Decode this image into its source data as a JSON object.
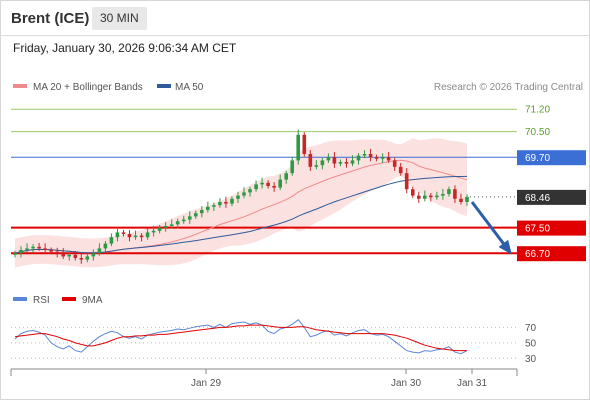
{
  "header": {
    "title": "Brent (ICE)",
    "timeframe": "30 MIN",
    "timestamp": "Friday, January 30, 2026 9:06:34 AM CET"
  },
  "legend": {
    "ma20_bb": "MA 20 + Bollinger Bands",
    "ma50": "MA 50",
    "rsi": "RSI",
    "rsi_ma": "9MA",
    "credit": "Research © 2026 Trading Central"
  },
  "colors": {
    "ma20": "#f08a8a",
    "bb_fill": "#fbdcdc",
    "ma50": "#2f5b9a",
    "bull": "#2e9a44",
    "bear": "#c62828",
    "resistance": "#9ccc65",
    "pivot": "#3b6fd6",
    "support": "#e00000",
    "current": "#333333",
    "rsi": "#5b86d6",
    "rsi_ma": "#e00000",
    "arrow": "#2a5ea8"
  },
  "chart_data": [
    {
      "type": "candlestick",
      "title": "Brent (ICE)",
      "timeframe": "30 MIN",
      "x_tick_labels": [
        "Jan 29",
        "Jan 30",
        "Jan 31"
      ],
      "ylim": [
        65.8,
        71.55
      ],
      "levels": [
        {
          "value": 71.2,
          "label": "71.20",
          "kind": "resistance"
        },
        {
          "value": 70.5,
          "label": "70.50",
          "kind": "resistance"
        },
        {
          "value": 69.7,
          "label": "69.70",
          "kind": "pivot"
        },
        {
          "value": 68.46,
          "label": "68.46",
          "kind": "current"
        },
        {
          "value": 67.5,
          "label": "67.50",
          "kind": "support"
        },
        {
          "value": 66.7,
          "label": "66.70",
          "kind": "support"
        }
      ],
      "projection": {
        "from": 68.3,
        "to": 66.7,
        "direction": "down"
      },
      "series": [
        {
          "name": "MA 20 + Bollinger Bands",
          "type": "line"
        },
        {
          "name": "MA 50",
          "type": "line"
        }
      ],
      "closes": [
        66.7,
        66.8,
        66.85,
        66.9,
        66.85,
        66.8,
        66.75,
        66.7,
        66.6,
        66.65,
        66.55,
        66.5,
        66.6,
        66.7,
        66.85,
        67.0,
        67.2,
        67.35,
        67.3,
        67.2,
        67.25,
        67.2,
        67.35,
        67.4,
        67.5,
        67.55,
        67.6,
        67.7,
        67.75,
        67.85,
        67.95,
        68.05,
        68.15,
        68.2,
        68.3,
        68.25,
        68.4,
        68.5,
        68.6,
        68.7,
        68.85,
        68.9,
        68.8,
        68.75,
        69.0,
        69.2,
        69.6,
        70.4,
        69.8,
        69.4,
        69.45,
        69.6,
        69.7,
        69.5,
        69.55,
        69.5,
        69.6,
        69.75,
        69.8,
        69.7,
        69.65,
        69.7,
        69.6,
        69.4,
        69.2,
        68.7,
        68.5,
        68.4,
        68.5,
        68.45,
        68.5,
        68.55,
        68.7,
        68.4,
        68.3,
        68.46
      ],
      "y_axis_side": "right"
    },
    {
      "type": "line",
      "title": "RSI",
      "series_names": [
        "RSI",
        "9MA"
      ],
      "y_ticks": [
        70,
        50,
        30
      ],
      "ylim": [
        20,
        90
      ],
      "rsi": [
        55,
        62,
        65,
        66,
        64,
        60,
        50,
        45,
        42,
        46,
        40,
        38,
        45,
        52,
        58,
        62,
        65,
        63,
        58,
        56,
        58,
        55,
        60,
        62,
        64,
        65,
        66,
        68,
        67,
        69,
        71,
        72,
        73,
        70,
        74,
        70,
        75,
        76,
        77,
        74,
        76,
        73,
        65,
        62,
        68,
        70,
        74,
        80,
        70,
        58,
        60,
        64,
        66,
        60,
        62,
        59,
        63,
        66,
        67,
        62,
        60,
        61,
        58,
        52,
        46,
        40,
        38,
        37,
        40,
        39,
        41,
        42,
        45,
        38,
        36,
        40
      ],
      "rsi_9ma": [
        58,
        59,
        60,
        61,
        62,
        62,
        60,
        58,
        55,
        53,
        50,
        48,
        46,
        46,
        48,
        50,
        53,
        56,
        58,
        58,
        59,
        59,
        60,
        60,
        61,
        61,
        62,
        63,
        64,
        65,
        66,
        67,
        68,
        69,
        70,
        70,
        71,
        72,
        72,
        73,
        73,
        73,
        72,
        71,
        70,
        70,
        70,
        71,
        71,
        69,
        67,
        66,
        65,
        64,
        63,
        62,
        62,
        62,
        62,
        62,
        62,
        62,
        61,
        60,
        58,
        56,
        53,
        50,
        47,
        45,
        43,
        42,
        41,
        40,
        40,
        40
      ]
    }
  ]
}
